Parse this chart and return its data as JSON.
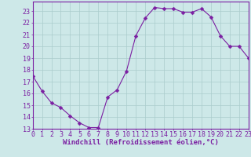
{
  "x": [
    0,
    1,
    2,
    3,
    4,
    5,
    6,
    7,
    8,
    9,
    10,
    11,
    12,
    13,
    14,
    15,
    16,
    17,
    18,
    19,
    20,
    21,
    22,
    23
  ],
  "y": [
    17.5,
    16.2,
    15.2,
    14.8,
    14.1,
    13.5,
    13.1,
    13.1,
    15.7,
    16.3,
    17.9,
    20.9,
    22.4,
    23.3,
    23.2,
    23.2,
    22.9,
    22.9,
    23.2,
    22.5,
    20.9,
    20.0,
    20.0,
    19.0
  ],
  "line_color": "#7b1fa2",
  "marker": "D",
  "marker_size": 2.5,
  "bg_color": "#cde8e8",
  "grid_color": "#aacccc",
  "xlabel": "Windchill (Refroidissement éolien,°C)",
  "xlabel_color": "#7b1fa2",
  "xlabel_fontsize": 6.5,
  "tick_color": "#7b1fa2",
  "tick_fontsize": 6,
  "ylim": [
    13,
    23.8
  ],
  "xlim": [
    0,
    23
  ],
  "yticks": [
    13,
    14,
    15,
    16,
    17,
    18,
    19,
    20,
    21,
    22,
    23
  ],
  "xticks": [
    0,
    1,
    2,
    3,
    4,
    5,
    6,
    7,
    8,
    9,
    10,
    11,
    12,
    13,
    14,
    15,
    16,
    17,
    18,
    19,
    20,
    21,
    22,
    23
  ],
  "spine_color": "#7b1fa2"
}
